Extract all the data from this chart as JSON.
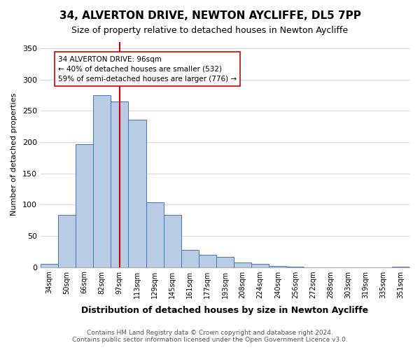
{
  "title": "34, ALVERTON DRIVE, NEWTON AYCLIFFE, DL5 7PP",
  "subtitle": "Size of property relative to detached houses in Newton Aycliffe",
  "xlabel": "Distribution of detached houses by size in Newton Aycliffe",
  "ylabel": "Number of detached properties",
  "footer_line1": "Contains HM Land Registry data © Crown copyright and database right 2024.",
  "footer_line2": "Contains public sector information licensed under the Open Government Licence v3.0.",
  "bar_labels": [
    "34sqm",
    "50sqm",
    "66sqm",
    "82sqm",
    "97sqm",
    "113sqm",
    "129sqm",
    "145sqm",
    "161sqm",
    "177sqm",
    "193sqm",
    "208sqm",
    "224sqm",
    "240sqm",
    "256sqm",
    "272sqm",
    "288sqm",
    "303sqm",
    "319sqm",
    "335sqm",
    "351sqm"
  ],
  "bar_heights": [
    5,
    84,
    196,
    275,
    265,
    236,
    104,
    84,
    28,
    20,
    16,
    7,
    5,
    2,
    1,
    0,
    0,
    0,
    0,
    0,
    1
  ],
  "bar_color": "#b8cce4",
  "bar_edge_color": "#4472c4",
  "vline_x": 4,
  "vline_color": "#cc0000",
  "annotation_title": "34 ALVERTON DRIVE: 96sqm",
  "annotation_line2": "← 40% of detached houses are smaller (532)",
  "annotation_line3": "59% of semi-detached houses are larger (776) →",
  "annotation_box_color": "#ffffff",
  "annotation_box_edge": "#cc0000",
  "ylim": [
    0,
    360
  ],
  "yticks": [
    0,
    50,
    100,
    150,
    200,
    250,
    300,
    350
  ],
  "bg_color": "#ffffff",
  "grid_color": "#d0d8e4"
}
